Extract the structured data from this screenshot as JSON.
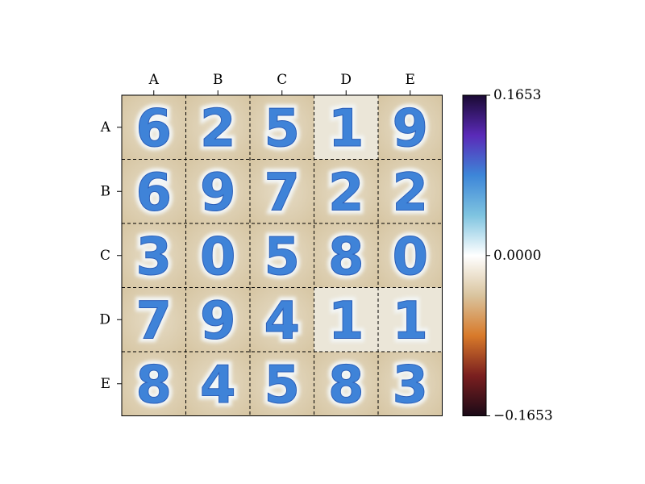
{
  "chart_data": {
    "type": "heatmap",
    "title": "",
    "xlabel": "",
    "ylabel": "",
    "columns": [
      "A",
      "B",
      "C",
      "D",
      "E"
    ],
    "rows": [
      "A",
      "B",
      "C",
      "D",
      "E"
    ],
    "cells": [
      [
        "6",
        "2",
        "5",
        "1",
        "9"
      ],
      [
        "6",
        "9",
        "7",
        "2",
        "2"
      ],
      [
        "3",
        "0",
        "5",
        "8",
        "0"
      ],
      [
        "7",
        "9",
        "4",
        "1",
        "1"
      ],
      [
        "8",
        "4",
        "5",
        "8",
        "3"
      ]
    ],
    "colorbar": {
      "min": -0.1653,
      "max": 0.1653,
      "tick_labels": [
        "0.1653",
        "0.0000",
        "−0.1653"
      ],
      "tick_values": [
        0.1653,
        0.0,
        -0.1653
      ],
      "colormap": [
        "#1b0a17",
        "#7a1f1f",
        "#d87a2a",
        "#d9c49e",
        "#ffffff",
        "#7fc4e0",
        "#3d86d8",
        "#5a2ab8",
        "#1a0a33"
      ]
    },
    "cell_background": "#dccdae",
    "digit_stroke": "#3f83d8",
    "digit_halo": "#f3f6f6",
    "grid": "dashed"
  }
}
